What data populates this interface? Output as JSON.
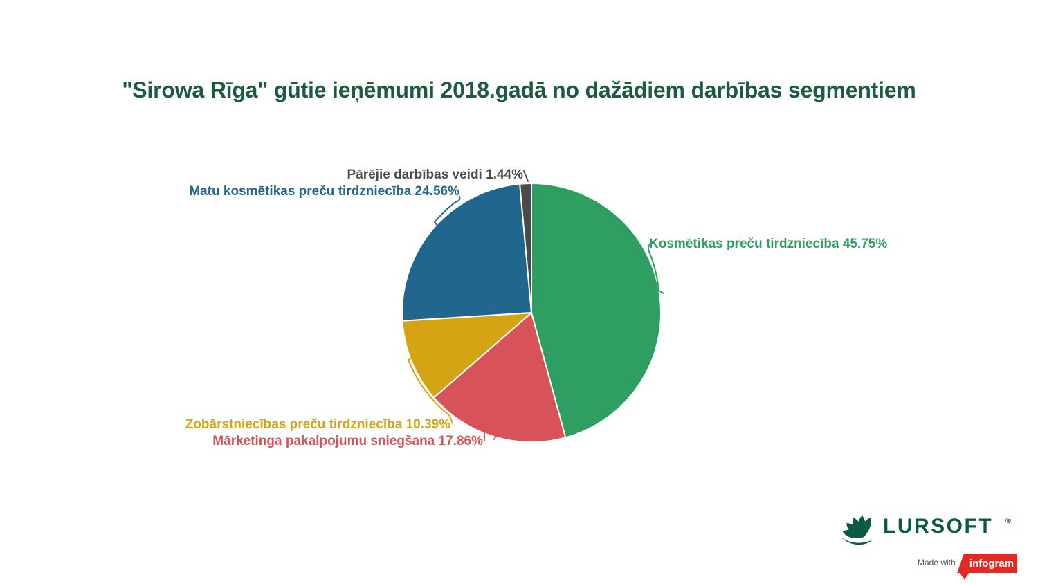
{
  "chart_data": {
    "type": "pie",
    "title": "\"Sirowa Rīga\" gūtie ieņēmumi 2018.gadā no dažādiem darbības segmentiem",
    "title_color": "#1d5b3e",
    "start_angle_deg": 0,
    "direction": "clockwise",
    "slice_border_color": "#ffffff",
    "legend_position": "callout-labels",
    "total_percent": 100,
    "slices": [
      {
        "label": "Kosmētikas preču tirdzniecība",
        "value": 45.75,
        "display": "Kosmētikas preču tirdzniecība 45.75%",
        "color": "#2f9e63"
      },
      {
        "label": "Mārketinga pakalpojumu sniegšana",
        "value": 17.86,
        "display": "Mārketinga pakalpojumu sniegšana 17.86%",
        "color": "#d75359"
      },
      {
        "label": "Zobārstniecības preču tirdzniecība",
        "value": 10.39,
        "display": "Zobārstniecības preču tirdzniecība 10.39%",
        "color": "#d5a415"
      },
      {
        "label": "Matu kosmētikas preču tirdzniecība",
        "value": 24.56,
        "display": "Matu kosmētikas preču tirdzniecība 24.56%",
        "color": "#21668d"
      },
      {
        "label": "Pārējie darbības veidi",
        "value": 1.44,
        "display": "Pārējie darbības veidi 1.44%",
        "color": "#4b4b4b"
      }
    ]
  },
  "branding": {
    "logo_text": "LURSOFT",
    "logo_registered": "®",
    "logo_color": "#0d5943",
    "made_with": "Made with",
    "badge_text": "infogram",
    "badge_color": "#e02b24"
  }
}
